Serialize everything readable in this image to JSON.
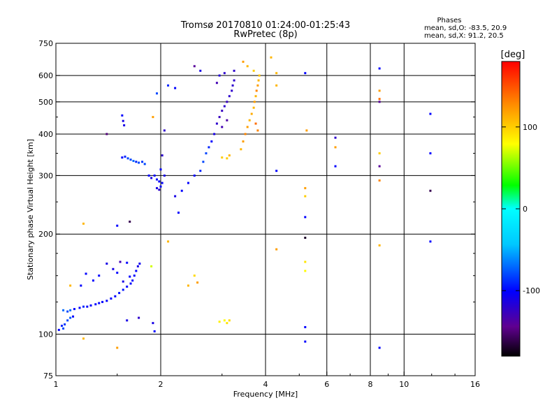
{
  "chart_data": {
    "type": "scatter",
    "title": "Tromsø 20170810 01:24:00-01:25:43",
    "subtitle": "RwPretec (8p)",
    "xlabel": "Frequency [MHz]",
    "ylabel": "Stationary phase Virtual Height [km]",
    "x_scale": "log",
    "y_scale": "log",
    "xlim": [
      1,
      16
    ],
    "ylim": [
      75,
      750
    ],
    "x_ticks": [
      1,
      2,
      4,
      6,
      8,
      10,
      16
    ],
    "x_grid": [
      2,
      4,
      6,
      8,
      10
    ],
    "y_ticks_labeled": [
      75,
      100,
      200,
      300,
      400,
      500,
      600,
      750
    ],
    "y_grid": [
      100,
      200,
      300,
      400,
      500,
      600
    ],
    "phase_info": {
      "heading": "Phases",
      "line_o": "mean, sd,O: -83.5, 20.9",
      "line_x": "mean, sd,X:  91.2, 20.5"
    },
    "colorbar": {
      "label": "[deg]",
      "range": [
        -180,
        180
      ],
      "ticks": [
        {
          "value": 100,
          "label": "100"
        },
        {
          "value": 0,
          "label": "0"
        },
        {
          "value": -100,
          "label": "-100"
        }
      ]
    },
    "series": [
      {
        "name": "low-trace-blue",
        "points": [
          [
            1.02,
            103,
            -100
          ],
          [
            1.04,
            106,
            -90
          ],
          [
            1.05,
            104,
            -80
          ],
          [
            1.06,
            107,
            -85
          ],
          [
            1.08,
            110,
            -80
          ],
          [
            1.1,
            112,
            -75
          ],
          [
            1.12,
            113,
            -100
          ],
          [
            1.05,
            118,
            -70
          ],
          [
            1.08,
            117,
            -80
          ],
          [
            1.1,
            118,
            -70
          ],
          [
            1.13,
            119,
            -100
          ],
          [
            1.17,
            120,
            -100
          ],
          [
            1.2,
            121,
            -90
          ],
          [
            1.23,
            121,
            -100
          ],
          [
            1.26,
            122,
            -100
          ],
          [
            1.3,
            123,
            -100
          ],
          [
            1.33,
            124,
            -100
          ],
          [
            1.36,
            125,
            -100
          ],
          [
            1.4,
            126,
            -100
          ],
          [
            1.44,
            128,
            -100
          ],
          [
            1.48,
            130,
            -100
          ],
          [
            1.52,
            133,
            -95
          ],
          [
            1.56,
            136,
            -95
          ],
          [
            1.6,
            139,
            -100
          ],
          [
            1.64,
            142,
            -100
          ],
          [
            1.66,
            145,
            -100
          ],
          [
            1.68,
            150,
            -100
          ],
          [
            1.7,
            155,
            -100
          ],
          [
            1.72,
            160,
            -110
          ],
          [
            1.74,
            163,
            -105
          ],
          [
            1.63,
            149,
            -100
          ],
          [
            1.56,
            144,
            -110
          ],
          [
            1.5,
            153,
            -100
          ],
          [
            1.46,
            157,
            -110
          ],
          [
            1.4,
            163,
            -110
          ],
          [
            1.33,
            150,
            -100
          ],
          [
            1.28,
            145,
            -100
          ],
          [
            1.22,
            152,
            -100
          ],
          [
            1.18,
            140,
            -100
          ],
          [
            1.53,
            165,
            -130
          ],
          [
            1.6,
            164,
            -100
          ],
          [
            1.73,
            112,
            -120
          ],
          [
            1.9,
            108,
            -110
          ],
          [
            1.6,
            110,
            -110
          ]
        ]
      },
      {
        "name": "f-region-o-trace",
        "points": [
          [
            1.55,
            340,
            -100
          ],
          [
            1.58,
            342,
            -90
          ],
          [
            1.61,
            338,
            -80
          ],
          [
            1.64,
            335,
            -80
          ],
          [
            1.67,
            332,
            -70
          ],
          [
            1.7,
            330,
            -90
          ],
          [
            1.73,
            328,
            -80
          ],
          [
            1.77,
            330,
            -85
          ],
          [
            1.8,
            325,
            -80
          ],
          [
            1.85,
            300,
            -100
          ],
          [
            1.88,
            295,
            -110
          ],
          [
            1.92,
            300,
            -100
          ],
          [
            1.95,
            292,
            -100
          ],
          [
            1.98,
            288,
            -100
          ],
          [
            2.02,
            285,
            -100
          ],
          [
            1.95,
            275,
            -110
          ],
          [
            1.98,
            272,
            -120
          ],
          [
            2.0,
            278,
            -100
          ],
          [
            2.05,
            300,
            -110
          ],
          [
            2.0,
            313,
            -100
          ],
          [
            2.02,
            345,
            -120
          ],
          [
            1.55,
            455,
            -100
          ],
          [
            1.56,
            438,
            -110
          ],
          [
            1.57,
            425,
            -110
          ],
          [
            2.2,
            260,
            -110
          ],
          [
            2.3,
            270,
            -100
          ],
          [
            2.4,
            285,
            -100
          ],
          [
            2.5,
            300,
            -100
          ],
          [
            2.6,
            310,
            -90
          ],
          [
            2.65,
            330,
            -80
          ],
          [
            2.7,
            350,
            -80
          ],
          [
            2.75,
            365,
            -90
          ],
          [
            2.8,
            380,
            -100
          ],
          [
            2.85,
            400,
            -110
          ],
          [
            2.9,
            430,
            -120
          ],
          [
            2.95,
            450,
            -125
          ],
          [
            3.0,
            470,
            -125
          ],
          [
            3.05,
            485,
            -120
          ],
          [
            3.1,
            500,
            -125
          ],
          [
            3.15,
            520,
            -120
          ],
          [
            3.2,
            540,
            -120
          ],
          [
            3.22,
            560,
            -120
          ],
          [
            3.25,
            580,
            -120
          ],
          [
            3.25,
            620,
            -120
          ],
          [
            3.05,
            610,
            -120
          ],
          [
            2.95,
            600,
            -115
          ],
          [
            2.9,
            570,
            -130
          ],
          [
            3.0,
            420,
            -130
          ],
          [
            3.1,
            440,
            -135
          ],
          [
            2.2,
            550,
            -100
          ],
          [
            2.1,
            560,
            -90
          ],
          [
            2.5,
            640,
            -140
          ],
          [
            2.6,
            620,
            -110
          ]
        ]
      },
      {
        "name": "f-region-x-trace",
        "points": [
          [
            3.0,
            340,
            100
          ],
          [
            3.1,
            338,
            100
          ],
          [
            3.15,
            345,
            110
          ],
          [
            3.4,
            360,
            110
          ],
          [
            3.45,
            380,
            120
          ],
          [
            3.5,
            400,
            130
          ],
          [
            3.55,
            420,
            120
          ],
          [
            3.6,
            440,
            110
          ],
          [
            3.65,
            460,
            115
          ],
          [
            3.7,
            480,
            110
          ],
          [
            3.72,
            500,
            120
          ],
          [
            3.75,
            520,
            110
          ],
          [
            3.77,
            540,
            130
          ],
          [
            3.8,
            560,
            120
          ],
          [
            3.82,
            580,
            110
          ],
          [
            3.84,
            600,
            105
          ],
          [
            3.7,
            620,
            100
          ],
          [
            3.55,
            640,
            110
          ],
          [
            3.45,
            660,
            120
          ],
          [
            3.75,
            430,
            140
          ],
          [
            3.8,
            410,
            130
          ],
          [
            3.05,
            110,
            80
          ],
          [
            3.1,
            108,
            90
          ],
          [
            3.15,
            110,
            95
          ],
          [
            2.95,
            109,
            85
          ]
        ]
      },
      {
        "name": "scattered",
        "points": [
          [
            1.9,
            450,
            120
          ],
          [
            1.95,
            530,
            -80
          ],
          [
            2.05,
            410,
            -120
          ],
          [
            1.4,
            400,
            -150
          ],
          [
            1.63,
            218,
            -160
          ],
          [
            1.5,
            212,
            -100
          ],
          [
            1.2,
            215,
            110
          ],
          [
            1.88,
            160,
            70
          ],
          [
            1.92,
            102,
            -100
          ],
          [
            2.25,
            232,
            -100
          ],
          [
            2.4,
            140,
            110
          ],
          [
            2.5,
            150,
            95
          ],
          [
            2.55,
            143,
            120
          ],
          [
            2.1,
            190,
            110
          ],
          [
            1.1,
            140,
            110
          ],
          [
            1.2,
            97,
            110
          ],
          [
            1.5,
            91,
            120
          ],
          [
            4.15,
            680,
            110
          ],
          [
            4.3,
            610,
            110
          ],
          [
            4.3,
            560,
            110
          ],
          [
            4.3,
            180,
            120
          ],
          [
            4.3,
            310,
            -100
          ],
          [
            5.2,
            610,
            -100
          ],
          [
            5.25,
            410,
            120
          ],
          [
            5.2,
            275,
            120
          ],
          [
            5.2,
            260,
            100
          ],
          [
            5.2,
            225,
            -100
          ],
          [
            5.2,
            195,
            -170
          ],
          [
            5.2,
            165,
            90
          ],
          [
            5.2,
            155,
            80
          ],
          [
            5.2,
            105,
            -100
          ],
          [
            5.2,
            95,
            -100
          ],
          [
            6.35,
            390,
            -120
          ],
          [
            6.35,
            365,
            120
          ],
          [
            6.35,
            320,
            -100
          ],
          [
            8.5,
            630,
            -100
          ],
          [
            8.5,
            540,
            120
          ],
          [
            8.5,
            510,
            140
          ],
          [
            8.5,
            500,
            -140
          ],
          [
            8.5,
            350,
            100
          ],
          [
            8.5,
            320,
            -140
          ],
          [
            8.5,
            290,
            130
          ],
          [
            8.5,
            185,
            110
          ],
          [
            8.5,
            91,
            -100
          ],
          [
            11.9,
            460,
            -100
          ],
          [
            11.9,
            350,
            -100
          ],
          [
            11.9,
            270,
            -160
          ],
          [
            11.9,
            190,
            -100
          ]
        ]
      }
    ]
  }
}
